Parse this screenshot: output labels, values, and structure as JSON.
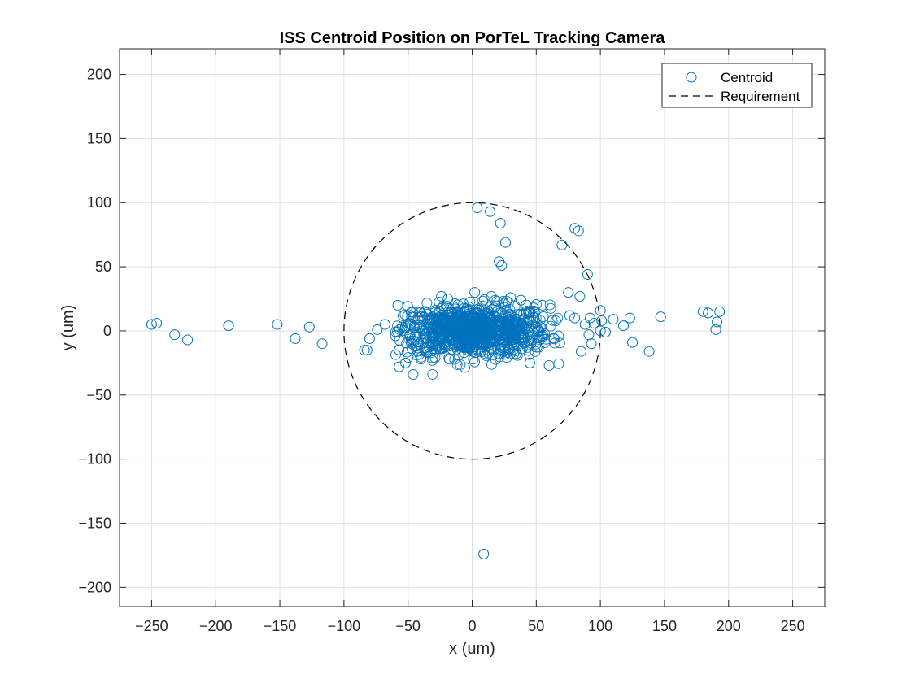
{
  "chart_data": {
    "type": "scatter",
    "title": "ISS Centroid Position on PorTeL Tracking Camera",
    "xlabel": "x (um)",
    "ylabel": "y (um)",
    "xlim": [
      -275,
      275
    ],
    "ylim": [
      -215,
      220
    ],
    "xticks": [
      -250,
      -200,
      -150,
      -100,
      -50,
      0,
      50,
      100,
      150,
      200,
      250
    ],
    "yticks": [
      -200,
      -150,
      -100,
      -50,
      0,
      50,
      100,
      150,
      200
    ],
    "grid": true,
    "legend_position": "top-right",
    "colors": {
      "marker": "#0072BD",
      "requirement": "#000000",
      "grid": "#dfdfdf",
      "axis": "#262626"
    },
    "series": [
      {
        "name": "Centroid",
        "style": "open-circle",
        "cluster": {
          "approx_count": 900,
          "center": [
            0,
            0
          ],
          "x_spread": 30,
          "y_spread": 10,
          "x_range": [
            -60,
            70
          ],
          "y_range": [
            -35,
            30
          ]
        },
        "points": [
          [
            -250,
            5
          ],
          [
            -246,
            6
          ],
          [
            -232,
            -3
          ],
          [
            -222,
            -7
          ],
          [
            -190,
            4
          ],
          [
            -152,
            5
          ],
          [
            -138,
            -6
          ],
          [
            -127,
            3
          ],
          [
            -117,
            -10
          ],
          [
            -84,
            -15
          ],
          [
            -82,
            -15
          ],
          [
            -80,
            -6
          ],
          [
            -74,
            1
          ],
          [
            -68,
            5
          ],
          [
            -58,
            20
          ],
          [
            -46,
            -34
          ],
          [
            -24,
            27
          ],
          [
            2,
            30
          ],
          [
            4,
            96
          ],
          [
            14,
            93
          ],
          [
            22,
            84
          ],
          [
            26,
            69
          ],
          [
            21,
            54
          ],
          [
            23,
            51
          ],
          [
            70,
            67
          ],
          [
            80,
            80
          ],
          [
            83,
            78
          ],
          [
            90,
            44
          ],
          [
            75,
            30
          ],
          [
            84,
            27
          ],
          [
            76,
            12
          ],
          [
            80,
            10
          ],
          [
            92,
            10
          ],
          [
            100,
            16
          ],
          [
            101,
            8
          ],
          [
            95,
            6
          ],
          [
            88,
            5
          ],
          [
            100,
            0
          ],
          [
            104,
            -1
          ],
          [
            91,
            -3
          ],
          [
            93,
            -10
          ],
          [
            85,
            -16
          ],
          [
            110,
            9
          ],
          [
            118,
            4
          ],
          [
            123,
            10
          ],
          [
            125,
            -9
          ],
          [
            138,
            -16
          ],
          [
            147,
            11
          ],
          [
            180,
            15
          ],
          [
            184,
            14
          ],
          [
            193,
            15
          ],
          [
            191,
            7
          ],
          [
            190,
            1
          ],
          [
            9,
            -174
          ],
          [
            -52,
            -25
          ],
          [
            -57,
            -28
          ],
          [
            -40,
            -22
          ],
          [
            60,
            -27
          ],
          [
            45,
            -25
          ],
          [
            30,
            26
          ],
          [
            15,
            27
          ],
          [
            55,
            20
          ],
          [
            38,
            24
          ]
        ]
      },
      {
        "name": "Requirement",
        "style": "dashed-circle",
        "center": [
          0,
          0
        ],
        "radius": 100
      }
    ]
  }
}
